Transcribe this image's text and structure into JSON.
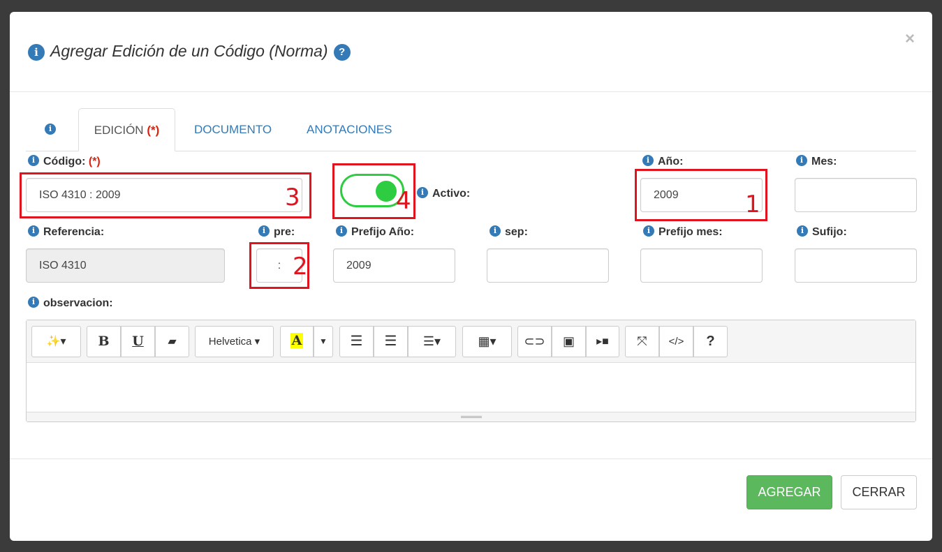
{
  "modal": {
    "title": "Agregar Edición de un Código (Norma)",
    "help_icon": "?",
    "close": "×",
    "info_icon": "i"
  },
  "tabs": [
    {
      "label": "EDICIÓN",
      "required": "(*)",
      "active": true
    },
    {
      "label": "DOCUMENTO"
    },
    {
      "label": "ANOTACIONES"
    }
  ],
  "form": {
    "codigo": {
      "label": "Código:",
      "required": "(*)",
      "value": "ISO 4310 : 2009"
    },
    "activo": {
      "label": "Activo:",
      "on": true,
      "color": "#2ecc40"
    },
    "anio": {
      "label": "Año:",
      "value": "2009"
    },
    "mes": {
      "label": "Mes:",
      "value": ""
    },
    "referencia": {
      "label": "Referencia:",
      "value": "ISO 4310"
    },
    "pre": {
      "label": "pre:",
      "value": ":"
    },
    "prefijo_anio": {
      "label": "Prefijo Año:",
      "value": "2009"
    },
    "sep": {
      "label": "sep:",
      "value": ""
    },
    "prefijo_mes": {
      "label": "Prefijo mes:",
      "value": ""
    },
    "sufijo": {
      "label": "Sufijo:",
      "value": ""
    },
    "observacion": {
      "label": "observacion:",
      "value": ""
    }
  },
  "editor": {
    "font": "Helvetica",
    "bold": "B",
    "underline": "U",
    "color_letter": "A",
    "code": "</>",
    "help": "?"
  },
  "annotations": [
    "1",
    "2",
    "3",
    "4"
  ],
  "footer": {
    "add": "AGREGAR",
    "close": "CERRAR",
    "add_color": "#5cb85c"
  }
}
